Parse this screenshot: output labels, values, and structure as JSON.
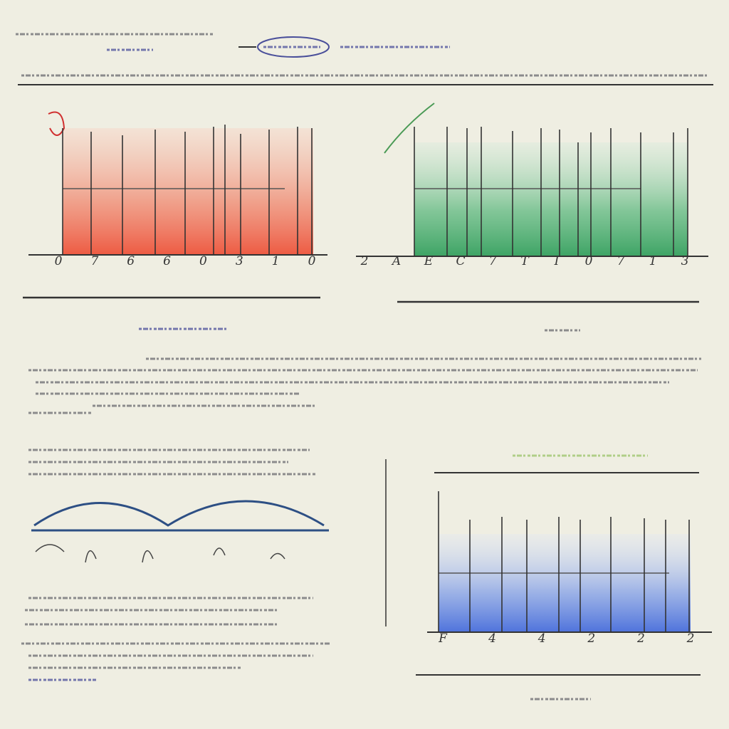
{
  "panels": [
    {
      "tick_labels": [
        "0",
        "7",
        "6",
        "6",
        "0",
        "3",
        "1",
        "0"
      ]
    },
    {
      "tick_labels": [
        "2",
        "A",
        "E",
        "C",
        "7",
        "T",
        "I",
        "0",
        "7",
        "1",
        "3"
      ]
    },
    {
      "tick_labels": [
        "F",
        "4",
        "4",
        "2",
        "2",
        "2"
      ]
    }
  ]
}
